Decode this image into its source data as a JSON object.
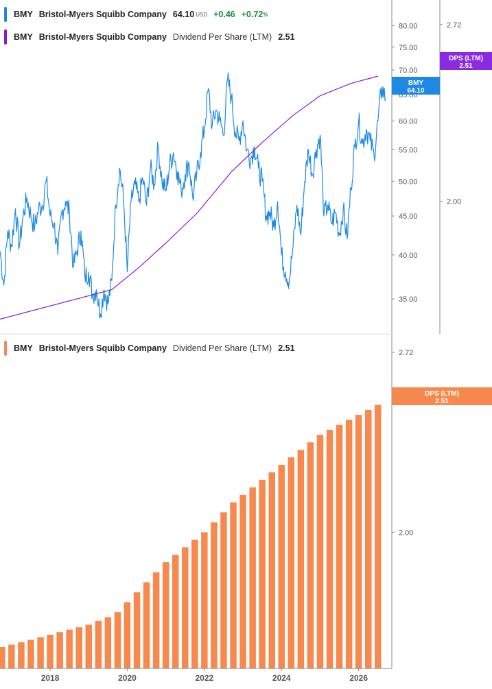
{
  "colors": {
    "price": "#1e88e5",
    "dps_line": "#7e1fd6",
    "dps_tag": "#8a2be2",
    "bars": "#f7894e",
    "axis": "#888888",
    "tick_text": "#555555"
  },
  "legend_price": {
    "ticker": "BMY",
    "company": "Bristol-Myers Squibb Company",
    "price": "64.10",
    "currency": "USD",
    "change": "+0.46",
    "change_pct": "+0.72",
    "pct_sign": "%"
  },
  "legend_dps_top": {
    "ticker": "BMY",
    "company": "Bristol-Myers Squibb Company",
    "metric": "Dividend Per Share (LTM)",
    "value": "2.51"
  },
  "legend_dps_bottom": {
    "ticker": "BMY",
    "company": "Bristol-Myers Squibb Company",
    "metric": "Dividend Per Share (LTM)",
    "value": "2.51"
  },
  "tags": {
    "price_line1": "BMY",
    "price_line2": "64.10",
    "dps_top_line1": "DPS (LTM)",
    "dps_top_line2": "2.51",
    "dps_bottom_line1": "DPS (LTM)",
    "dps_bottom_line2": "2.51"
  },
  "chart_data": [
    {
      "type": "line",
      "series": [
        {
          "name": "BMY",
          "x": [
            2016.7,
            2016.8,
            2016.9,
            2017.0,
            2017.1,
            2017.2,
            2017.3,
            2017.4,
            2017.5,
            2017.6,
            2017.7,
            2017.8,
            2017.9,
            2018.0,
            2018.1,
            2018.2,
            2018.3,
            2018.4,
            2018.5,
            2018.6,
            2018.7,
            2018.8,
            2018.9,
            2019.0,
            2019.1,
            2019.2,
            2019.3,
            2019.4,
            2019.5,
            2019.6,
            2019.7,
            2019.8,
            2019.9,
            2020.0,
            2020.1,
            2020.2,
            2020.3,
            2020.4,
            2020.5,
            2020.6,
            2020.7,
            2020.8,
            2020.9,
            2021.0,
            2021.1,
            2021.2,
            2021.3,
            2021.4,
            2021.5,
            2021.6,
            2021.7,
            2021.8,
            2021.9,
            2022.0,
            2022.1,
            2022.2,
            2022.3,
            2022.4,
            2022.5,
            2022.6,
            2022.7,
            2022.8,
            2022.9,
            2023.0,
            2023.1,
            2023.2,
            2023.3,
            2023.4,
            2023.5,
            2023.6,
            2023.7,
            2023.8,
            2023.9,
            2024.0,
            2024.1,
            2024.2,
            2024.3,
            2024.4,
            2024.5,
            2024.6,
            2024.7,
            2024.8,
            2024.9,
            2025.0,
            2025.1,
            2025.2,
            2025.3,
            2025.4,
            2025.5,
            2025.6,
            2025.7,
            2025.8,
            2025.9,
            2026.0,
            2026.1,
            2026.2,
            2026.3,
            2026.4,
            2026.5,
            2026.6,
            2026.7
          ],
          "y": [
            40.5,
            36.5,
            43.0,
            41.0,
            46.0,
            41.0,
            45.0,
            47.5,
            45.0,
            43.5,
            46.0,
            46.5,
            50.0,
            45.0,
            44.0,
            40.0,
            45.5,
            47.0,
            45.5,
            38.5,
            40.5,
            43.0,
            37.5,
            38.0,
            35.5,
            36.0,
            33.5,
            36.0,
            34.5,
            37.0,
            46.5,
            52.0,
            47.5,
            38.0,
            47.0,
            49.5,
            47.0,
            50.5,
            46.5,
            52.0,
            49.5,
            55.5,
            50.0,
            48.5,
            52.5,
            54.5,
            51.5,
            48.5,
            51.0,
            53.0,
            47.5,
            51.0,
            54.5,
            58.5,
            66.0,
            59.0,
            62.0,
            60.0,
            57.5,
            68.0,
            64.5,
            58.0,
            56.5,
            60.0,
            55.0,
            53.5,
            55.5,
            52.0,
            50.0,
            45.0,
            45.5,
            43.5,
            47.0,
            40.0,
            38.0,
            37.0,
            41.0,
            46.5,
            42.5,
            50.0,
            55.0,
            51.0,
            55.0,
            57.5,
            45.0,
            46.5,
            44.0,
            45.5,
            42.5,
            46.0,
            42.0,
            49.0,
            55.5,
            60.0,
            56.0,
            58.5,
            56.5,
            54.0,
            60.0,
            66.5,
            64.1
          ]
        },
        {
          "name": "Dividend Per Share (LTM)",
          "x": [
            2016.7,
            2019.6,
            2020.3,
            2021.0,
            2021.8,
            2022.7,
            2023.5,
            2024.3,
            2025.0,
            2025.8,
            2026.5
          ],
          "y": [
            1.52,
            1.64,
            1.73,
            1.83,
            1.95,
            2.12,
            2.24,
            2.35,
            2.43,
            2.48,
            2.51
          ]
        }
      ],
      "y_ticks": [
        "80.00",
        "75.00",
        "70.00",
        "65.00",
        "60.00",
        "55.00",
        "50.00",
        "45.00",
        "40.00",
        "35.00"
      ],
      "y_scale": "log",
      "ylim": [
        31.5,
        86.5
      ],
      "y2_ticks": [
        "2.72",
        "2.00"
      ],
      "y2lim": [
        1.46,
        2.82
      ],
      "xlim": [
        2016.7,
        2026.86
      ],
      "grid": false
    },
    {
      "type": "bar",
      "series": [
        {
          "name": "Dividend Per Share (LTM)",
          "x": [
            2016.75,
            2017.0,
            2017.25,
            2017.5,
            2017.75,
            2018.0,
            2018.25,
            2018.5,
            2018.75,
            2019.0,
            2019.25,
            2019.5,
            2019.75,
            2020.0,
            2020.25,
            2020.5,
            2020.75,
            2021.0,
            2021.25,
            2021.5,
            2021.75,
            2022.0,
            2022.25,
            2022.5,
            2022.75,
            2023.0,
            2023.25,
            2023.5,
            2023.75,
            2024.0,
            2024.25,
            2024.5,
            2024.75,
            2025.0,
            2025.25,
            2025.5,
            2025.75,
            2026.0,
            2026.25,
            2026.5
          ],
          "y": [
            1.54,
            1.55,
            1.56,
            1.57,
            1.58,
            1.59,
            1.6,
            1.61,
            1.62,
            1.63,
            1.645,
            1.66,
            1.68,
            1.72,
            1.76,
            1.8,
            1.84,
            1.88,
            1.91,
            1.94,
            1.97,
            2.0,
            2.04,
            2.08,
            2.12,
            2.15,
            2.18,
            2.21,
            2.24,
            2.27,
            2.3,
            2.33,
            2.36,
            2.39,
            2.41,
            2.43,
            2.45,
            2.47,
            2.49,
            2.51
          ]
        }
      ],
      "x_ticks": [
        "2018",
        "2020",
        "2022",
        "2024",
        "2026"
      ],
      "x_tick_values": [
        2018,
        2020,
        2022,
        2024,
        2026
      ],
      "xlim": [
        2016.7,
        2026.86
      ],
      "y_ticks": [
        "2.72",
        "2.00"
      ],
      "ylim": [
        1.455,
        2.786
      ],
      "grid": false
    }
  ]
}
